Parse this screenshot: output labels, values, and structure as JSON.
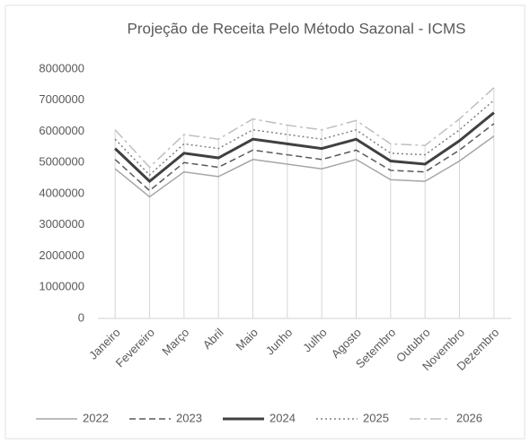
{
  "chart_data": {
    "type": "line",
    "title": "Projeção de Receita Pelo Método Sazonal - ICMS",
    "categories": [
      "Janeiro",
      "Fevereiro",
      "Março",
      "Abril",
      "Maio",
      "Junho",
      "Julho",
      "Agosto",
      "Setembro",
      "Outubro",
      "Novembro",
      "Dezembro"
    ],
    "series": [
      {
        "name": "2022",
        "color": "#a6a6a6",
        "dash": "solid",
        "line_width": 1.5,
        "values": [
          4800000,
          3900000,
          4700000,
          4550000,
          5100000,
          4950000,
          4800000,
          5100000,
          4450000,
          4400000,
          5050000,
          5850000
        ]
      },
      {
        "name": "2023",
        "color": "#595959",
        "dash": "dashed",
        "line_width": 1.5,
        "values": [
          5100000,
          4100000,
          5000000,
          4850000,
          5400000,
          5250000,
          5100000,
          5400000,
          4750000,
          4700000,
          5400000,
          6250000
        ]
      },
      {
        "name": "2024",
        "color": "#404040",
        "dash": "solid",
        "line_width": 3,
        "values": [
          5450000,
          4400000,
          5300000,
          5150000,
          5750000,
          5600000,
          5450000,
          5750000,
          5050000,
          4950000,
          5700000,
          6600000
        ]
      },
      {
        "name": "2025",
        "color": "#808080",
        "dash": "dotted",
        "line_width": 1.5,
        "values": [
          5750000,
          4600000,
          5600000,
          5450000,
          6050000,
          5900000,
          5750000,
          6050000,
          5300000,
          5250000,
          6050000,
          7000000
        ]
      },
      {
        "name": "2026",
        "color": "#bfbfbf",
        "dash": "dashdot",
        "line_width": 1.5,
        "values": [
          6050000,
          4850000,
          5900000,
          5750000,
          6400000,
          6200000,
          6050000,
          6350000,
          5600000,
          5550000,
          6400000,
          7400000
        ]
      }
    ],
    "ylim": [
      0,
      8000000
    ],
    "yticks": [
      0,
      1000000,
      2000000,
      3000000,
      4000000,
      5000000,
      6000000,
      7000000,
      8000000
    ],
    "grid": false,
    "drop_lines": true,
    "legend": "bottom"
  }
}
